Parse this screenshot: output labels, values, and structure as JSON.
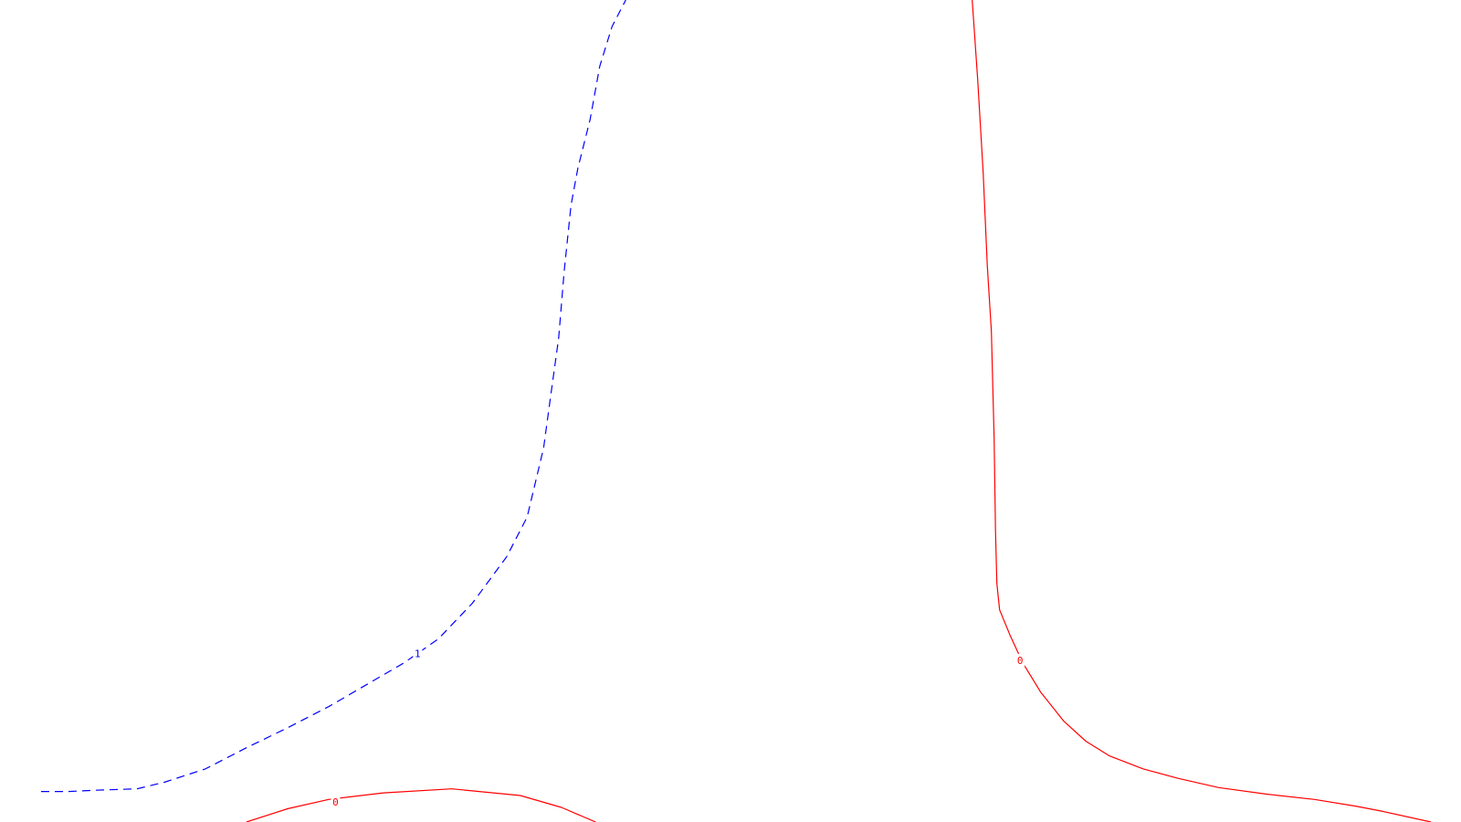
{
  "chart_data": {
    "type": "contour",
    "title": "",
    "xlabel": "",
    "ylabel": "",
    "grid": false,
    "legend": "none",
    "contours": [
      {
        "level": "1",
        "label": "1",
        "color": "#0000ff",
        "line_style": "dashed",
        "segments": [
          [
            [
              0.3,
              0.03
            ],
            [
              0.5,
              0.03
            ],
            [
              0.7,
              0.04
            ],
            [
              1.0,
              0.05
            ],
            [
              1.2,
              0.1
            ],
            [
              1.5,
              0.2
            ],
            [
              1.8,
              0.36
            ],
            [
              2.1,
              0.51
            ],
            [
              2.4,
              0.67
            ],
            [
              2.7,
              0.85
            ],
            [
              2.95,
              1.0
            ],
            [
              3.2,
              1.18
            ],
            [
              3.45,
              1.45
            ],
            [
              3.7,
              1.8
            ],
            [
              3.85,
              2.1
            ],
            [
              3.97,
              2.62
            ],
            [
              4.02,
              3.0
            ],
            [
              4.08,
              3.45
            ],
            [
              4.12,
              3.95
            ],
            [
              4.17,
              4.45
            ],
            [
              4.22,
              4.73
            ],
            [
              4.31,
              5.1
            ],
            [
              4.38,
              5.5
            ],
            [
              4.47,
              5.8
            ],
            [
              4.57,
              6.0
            ]
          ]
        ]
      },
      {
        "level": "0",
        "label": "0",
        "color": "#ff0000",
        "line_style": "solid",
        "segments": [
          [
            [
              1.8,
              -0.2
            ],
            [
              2.1,
              -0.1
            ],
            [
              2.4,
              -0.03
            ],
            [
              2.8,
              0.02
            ],
            [
              3.3,
              0.05
            ],
            [
              3.8,
              0.0
            ],
            [
              4.1,
              -0.09
            ],
            [
              4.35,
              -0.2
            ]
          ],
          [
            [
              7.1,
              6.0
            ],
            [
              7.14,
              5.4
            ],
            [
              7.18,
              4.7
            ],
            [
              7.21,
              4.0
            ],
            [
              7.24,
              3.5
            ],
            [
              7.26,
              2.7
            ],
            [
              7.27,
              2.0
            ],
            [
              7.28,
              1.6
            ],
            [
              7.3,
              1.4
            ],
            [
              7.38,
              1.2
            ],
            [
              7.47,
              1.0
            ],
            [
              7.6,
              0.78
            ],
            [
              7.77,
              0.56
            ],
            [
              7.93,
              0.41
            ],
            [
              8.1,
              0.3
            ],
            [
              8.35,
              0.2
            ],
            [
              8.6,
              0.13
            ],
            [
              8.9,
              0.06
            ],
            [
              9.25,
              0.01
            ],
            [
              9.6,
              -0.03
            ],
            [
              9.9,
              -0.08
            ],
            [
              10.1,
              -0.12
            ],
            [
              10.45,
              -0.2
            ]
          ]
        ]
      }
    ],
    "labels": [
      {
        "text": "1",
        "x": 3.05,
        "y": 1.07,
        "color": "#0000ff"
      },
      {
        "text": "0",
        "x": 2.45,
        "y": -0.05,
        "color": "#ff0000"
      },
      {
        "text": "0",
        "x": 7.45,
        "y": 1.02,
        "color": "#ff0000"
      }
    ],
    "xlim": [
      0,
      10.67
    ],
    "ylim": [
      -0.2,
      6.0
    ]
  }
}
